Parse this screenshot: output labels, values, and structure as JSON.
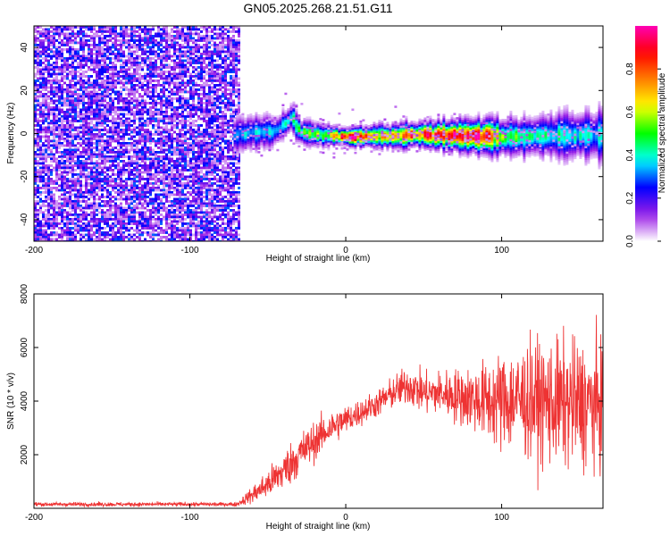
{
  "title": "GN05.2025.268.21.51.G11",
  "chart_data": [
    {
      "type": "heatmap",
      "name": "spectrogram",
      "xlabel": "Height of straight line (km)",
      "ylabel": "Frequency (Hz)",
      "xlim": [
        -200,
        165
      ],
      "ylim": [
        -50,
        50
      ],
      "x_ticks": [
        -200,
        -100,
        0,
        100
      ],
      "y_ticks": [
        -40,
        -20,
        0,
        20,
        40
      ],
      "colorbar": {
        "label": "Normalized spectral amplitude",
        "range": [
          0,
          1
        ],
        "ticks": [
          0.0,
          0.2,
          0.4,
          0.6,
          0.8
        ],
        "tick_labels": [
          "0.0",
          "0.2",
          "0.4",
          "0.6",
          "0.8"
        ],
        "colormap": [
          "#ffffff",
          "#9a1ee6",
          "#0000ff",
          "#00ffff",
          "#00ff00",
          "#ffff00",
          "#ff8000",
          "#ff0000",
          "#ff00b4"
        ]
      },
      "noise_region": {
        "x_range": [
          -200,
          -68
        ],
        "typical_amplitude": [
          0.05,
          0.3
        ]
      },
      "signal_track": {
        "x_range": [
          -72,
          165
        ],
        "center_frequency_hz": [
          [
            -72,
            0
          ],
          [
            -60,
            1
          ],
          [
            -45,
            2
          ],
          [
            -35,
            8
          ],
          [
            -30,
            1
          ],
          [
            0,
            -1
          ],
          [
            50,
            0
          ],
          [
            100,
            -1
          ],
          [
            165,
            0
          ]
        ],
        "peak_amplitude": [
          [
            -70,
            0.35
          ],
          [
            -40,
            0.4
          ],
          [
            -10,
            0.6
          ],
          [
            0,
            0.95
          ],
          [
            20,
            0.7
          ],
          [
            50,
            0.85
          ],
          [
            80,
            0.95
          ],
          [
            110,
            0.45
          ],
          [
            165,
            0.35
          ]
        ],
        "half_width_hz": [
          [
            -70,
            4
          ],
          [
            0,
            2
          ],
          [
            100,
            4
          ],
          [
            165,
            6
          ]
        ]
      }
    },
    {
      "type": "line",
      "name": "snr",
      "xlabel": "Height of straight line (km)",
      "ylabel": "SNR (10 * v/v)",
      "xlim": [
        -200,
        165
      ],
      "ylim": [
        0,
        8000
      ],
      "x_ticks": [
        -200,
        -100,
        0,
        100
      ],
      "y_ticks": [
        2000,
        4000,
        6000,
        8000
      ],
      "color": "#ee3333",
      "envelope": {
        "x": [
          -200,
          -70,
          -60,
          -50,
          -40,
          -30,
          -20,
          -10,
          0,
          10,
          20,
          30,
          40,
          50,
          60,
          70,
          80,
          90,
          100,
          110,
          120,
          130,
          140,
          150,
          160,
          165
        ],
        "mean": [
          150,
          150,
          500,
          900,
          1400,
          2000,
          2500,
          3000,
          3300,
          3600,
          3900,
          4300,
          4600,
          4300,
          4300,
          4200,
          4100,
          4000,
          4000,
          4050,
          4000,
          3950,
          3900,
          3900,
          3850,
          3850
        ],
        "spread": [
          80,
          80,
          350,
          600,
          800,
          900,
          800,
          700,
          600,
          550,
          550,
          650,
          800,
          850,
          900,
          1100,
          1300,
          1600,
          2000,
          2200,
          2400,
          2500,
          2600,
          2600,
          2600,
          2600
        ]
      }
    }
  ]
}
